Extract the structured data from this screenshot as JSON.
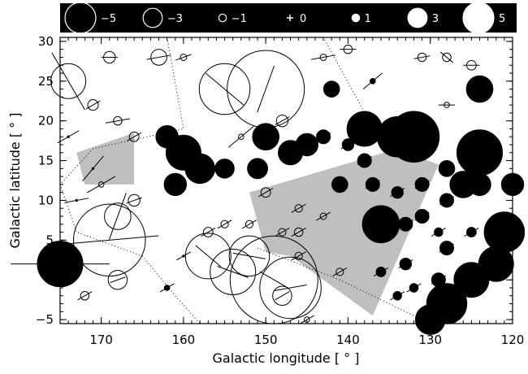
{
  "chart_data": {
    "type": "scatter",
    "title": "",
    "xlabel": "Galactic longitude [ ° ]",
    "ylabel": "Galactic latitude [ ° ]",
    "xlim": [
      175,
      120
    ],
    "ylim": [
      -5.5,
      30.5
    ],
    "x_ticks": [
      170,
      160,
      150,
      140,
      130,
      120
    ],
    "y_ticks": [
      30,
      25,
      20,
      15,
      10,
      5,
      0,
      -5
    ],
    "x_tick_labels": [
      "170",
      "160",
      "150",
      "140",
      "130",
      "120"
    ],
    "y_tick_labels": [
      "30",
      "25",
      "20",
      "15",
      "10",
      "5",
      "0",
      "−5"
    ],
    "legend": {
      "placement": "top",
      "entries": [
        {
          "label": "−5",
          "value": -5
        },
        {
          "label": "−3",
          "value": -3
        },
        {
          "label": "−1",
          "value": -1
        },
        {
          "label": "0",
          "value": 0
        },
        {
          "label": "1",
          "value": 1
        },
        {
          "label": "3",
          "value": 3
        },
        {
          "label": "5",
          "value": 5
        }
      ]
    },
    "shaded_regions": [
      [
        [
          173,
          16
        ],
        [
          166,
          18.5
        ],
        [
          166,
          12
        ],
        [
          172,
          12
        ]
      ],
      [
        [
          152,
          11
        ],
        [
          134,
          16.5
        ],
        [
          129,
          14.5
        ],
        [
          137,
          -4.5
        ],
        [
          147,
          3
        ],
        [
          150,
          3.5
        ]
      ]
    ],
    "dotted_boundaries": [
      [
        [
          162,
          30.5
        ],
        [
          160,
          19
        ],
        [
          171,
          16.5
        ],
        [
          175,
          12
        ],
        [
          173,
          6
        ],
        [
          165,
          3
        ],
        [
          161,
          -2
        ],
        [
          158,
          -5.5
        ]
      ],
      [
        [
          162,
          30.5
        ],
        [
          143,
          30.5
        ],
        [
          138.5,
          22
        ],
        [
          137,
          19
        ]
      ],
      [
        [
          151,
          4
        ],
        [
          141,
          0
        ],
        [
          130,
          -5.5
        ]
      ]
    ],
    "points": [
      {
        "l": 175,
        "b": 2,
        "v": 4.0,
        "pa": 90,
        "len": 6
      },
      {
        "l": 169,
        "b": 5,
        "v": -6.5,
        "pa": 85,
        "len": 6
      },
      {
        "l": 168,
        "b": 0,
        "v": -1.5,
        "pa": 70,
        "len": 1
      },
      {
        "l": 172,
        "b": -2,
        "v": -0.5,
        "pa": 60,
        "len": 1
      },
      {
        "l": 166,
        "b": 10,
        "v": -0.8,
        "pa": 70,
        "len": 1
      },
      {
        "l": 168,
        "b": 8,
        "v": -2.2,
        "pa": 20,
        "len": 3
      },
      {
        "l": 174,
        "b": 25,
        "v": -3.0,
        "pa": 150,
        "len": 4
      },
      {
        "l": 169,
        "b": 28,
        "v": -0.8,
        "pa": 90,
        "len": 1
      },
      {
        "l": 163,
        "b": 28,
        "v": -1.2,
        "pa": 80,
        "len": 1.5
      },
      {
        "l": 160,
        "b": 28,
        "v": -0.3,
        "pa": 70,
        "len": 1
      },
      {
        "l": 171,
        "b": 22,
        "v": -0.7,
        "pa": 60,
        "len": 1
      },
      {
        "l": 168,
        "b": 20,
        "v": -0.5,
        "pa": 80,
        "len": 1.5
      },
      {
        "l": 166,
        "b": 18,
        "v": -0.6,
        "pa": 60,
        "len": 1
      },
      {
        "l": 170,
        "b": 12,
        "v": -0.2,
        "pa": 60,
        "len": 2
      },
      {
        "l": 173,
        "b": 10,
        "v": 0,
        "pa": 80,
        "len": 1.5
      },
      {
        "l": 171,
        "b": 14,
        "v": 0,
        "pa": 40,
        "len": 2
      },
      {
        "l": 174,
        "b": 18,
        "v": 0,
        "pa": 60,
        "len": 1.5
      },
      {
        "l": 155,
        "b": 24,
        "v": -4.5,
        "pa": 130,
        "len": 3
      },
      {
        "l": 150,
        "b": 24,
        "v": -7.0,
        "pa": 20,
        "len": 3
      },
      {
        "l": 148,
        "b": 20,
        "v": -0.8,
        "pa": 60,
        "len": 1
      },
      {
        "l": 153,
        "b": 18,
        "v": -0.2,
        "pa": 50,
        "len": 2
      },
      {
        "l": 140,
        "b": 29,
        "v": -0.5,
        "pa": 90,
        "len": 1
      },
      {
        "l": 143,
        "b": 28,
        "v": -0.3,
        "pa": 80,
        "len": 1.5
      },
      {
        "l": 131,
        "b": 28,
        "v": -0.5,
        "pa": 80,
        "len": 1
      },
      {
        "l": 128,
        "b": 28,
        "v": -0.5,
        "pa": 130,
        "len": 1
      },
      {
        "l": 125,
        "b": 27,
        "v": -0.6,
        "pa": 90,
        "len": 1
      },
      {
        "l": 128,
        "b": 22,
        "v": -0.2,
        "pa": 90,
        "len": 1
      },
      {
        "l": 137,
        "b": 25,
        "v": 0.2,
        "pa": 50,
        "len": 1.5
      },
      {
        "l": 142,
        "b": 24,
        "v": 1.2,
        "pa": 60,
        "len": 1
      },
      {
        "l": 124,
        "b": 24,
        "v": 2.2,
        "pa": 60,
        "len": 1
      },
      {
        "l": 138,
        "b": 19,
        "v": 3.0,
        "pa": 70,
        "len": 2
      },
      {
        "l": 132,
        "b": 18,
        "v": 4.5,
        "pa": 70,
        "len": 2
      },
      {
        "l": 124,
        "b": 16,
        "v": 4.0,
        "pa": 60,
        "len": 2
      },
      {
        "l": 134,
        "b": 18,
        "v": 3.5,
        "pa": 70,
        "len": 1.5
      },
      {
        "l": 162,
        "b": 18,
        "v": 1.8,
        "pa": 60,
        "len": 1
      },
      {
        "l": 160,
        "b": 16,
        "v": 3.0,
        "pa": 50,
        "len": 1
      },
      {
        "l": 158,
        "b": 14,
        "v": 2.5,
        "pa": 50,
        "len": 1
      },
      {
        "l": 161,
        "b": 12,
        "v": 1.8,
        "pa": 60,
        "len": 1
      },
      {
        "l": 155,
        "b": 14,
        "v": 1.5,
        "pa": 60,
        "len": 1
      },
      {
        "l": 151,
        "b": 14,
        "v": 1.6,
        "pa": 60,
        "len": 1
      },
      {
        "l": 150,
        "b": 18,
        "v": 2.2,
        "pa": 60,
        "len": 1
      },
      {
        "l": 147,
        "b": 16,
        "v": 2.0,
        "pa": 60,
        "len": 1
      },
      {
        "l": 145,
        "b": 17,
        "v": 1.8,
        "pa": 60,
        "len": 1
      },
      {
        "l": 143,
        "b": 18,
        "v": 1.0,
        "pa": 60,
        "len": 1
      },
      {
        "l": 140,
        "b": 17,
        "v": 0.8,
        "pa": 60,
        "len": 1
      },
      {
        "l": 138,
        "b": 15,
        "v": 1.0,
        "pa": 60,
        "len": 1
      },
      {
        "l": 141,
        "b": 12,
        "v": 1.2,
        "pa": 60,
        "len": 1
      },
      {
        "l": 137,
        "b": 12,
        "v": 1.0,
        "pa": 60,
        "len": 1
      },
      {
        "l": 134,
        "b": 11,
        "v": 0.8,
        "pa": 60,
        "len": 1
      },
      {
        "l": 131,
        "b": 12,
        "v": 1.0,
        "pa": 60,
        "len": 1
      },
      {
        "l": 128,
        "b": 14,
        "v": 1.2,
        "pa": 60,
        "len": 1
      },
      {
        "l": 126,
        "b": 12,
        "v": 2.2,
        "pa": 60,
        "len": 1
      },
      {
        "l": 124,
        "b": 12,
        "v": 1.8,
        "pa": 60,
        "len": 1
      },
      {
        "l": 120,
        "b": 12,
        "v": 1.8,
        "pa": 60,
        "len": 1
      },
      {
        "l": 128,
        "b": 10,
        "v": 1.0,
        "pa": 60,
        "len": 1
      },
      {
        "l": 131,
        "b": 8,
        "v": 1.0,
        "pa": 60,
        "len": 1
      },
      {
        "l": 136,
        "b": 7,
        "v": 3.2,
        "pa": 60,
        "len": 1
      },
      {
        "l": 133,
        "b": 7,
        "v": 1.0,
        "pa": 60,
        "len": 1
      },
      {
        "l": 129,
        "b": 6,
        "v": 0.5,
        "pa": 60,
        "len": 1
      },
      {
        "l": 125,
        "b": 6,
        "v": 0.6,
        "pa": 60,
        "len": 1
      },
      {
        "l": 121,
        "b": 6,
        "v": 3.5,
        "pa": 60,
        "len": 1
      },
      {
        "l": 128,
        "b": 4,
        "v": 1.0,
        "pa": 60,
        "len": 1
      },
      {
        "l": 122,
        "b": 2,
        "v": 3.0,
        "pa": 60,
        "len": 1
      },
      {
        "l": 125,
        "b": 0,
        "v": 3.0,
        "pa": 60,
        "len": 1
      },
      {
        "l": 129,
        "b": 0,
        "v": 1.0,
        "pa": 60,
        "len": 1
      },
      {
        "l": 128,
        "b": -3,
        "v": 3.5,
        "pa": 60,
        "len": 1
      },
      {
        "l": 130,
        "b": -5,
        "v": 2.5,
        "pa": 60,
        "len": 1
      },
      {
        "l": 132,
        "b": -1,
        "v": 0.5,
        "pa": 60,
        "len": 1
      },
      {
        "l": 134,
        "b": -2,
        "v": 0.5,
        "pa": 60,
        "len": 1
      },
      {
        "l": 133,
        "b": 2,
        "v": 0.8,
        "pa": 60,
        "len": 1
      },
      {
        "l": 136,
        "b": 1,
        "v": 0.6,
        "pa": 60,
        "len": 1
      },
      {
        "l": 141,
        "b": 1,
        "v": -0.4,
        "pa": 60,
        "len": 1
      },
      {
        "l": 148,
        "b": -2,
        "v": -1.5,
        "pa": 60,
        "len": 1
      },
      {
        "l": 146,
        "b": 3,
        "v": -0.4,
        "pa": 60,
        "len": 1
      },
      {
        "l": 148,
        "b": 6,
        "v": -0.4,
        "pa": 60,
        "len": 1
      },
      {
        "l": 152,
        "b": 7,
        "v": -0.4,
        "pa": 60,
        "len": 1
      },
      {
        "l": 155,
        "b": 7,
        "v": -0.4,
        "pa": 60,
        "len": 1
      },
      {
        "l": 157,
        "b": 6,
        "v": -0.6,
        "pa": 60,
        "len": 1
      },
      {
        "l": 150,
        "b": 11,
        "v": -0.6,
        "pa": 60,
        "len": 1
      },
      {
        "l": 146,
        "b": 9,
        "v": -0.4,
        "pa": 60,
        "len": 1
      },
      {
        "l": 143,
        "b": 8,
        "v": -0.3,
        "pa": 60,
        "len": 1
      },
      {
        "l": 146,
        "b": 6,
        "v": -0.5,
        "pa": 60,
        "len": 1
      },
      {
        "l": 160,
        "b": 3,
        "v": 0,
        "pa": 60,
        "len": 1
      },
      {
        "l": 157,
        "b": 3,
        "v": -4.0,
        "pa": 130,
        "len": 2
      },
      {
        "l": 154,
        "b": 1,
        "v": -4.0,
        "pa": 110,
        "len": 2
      },
      {
        "l": 152,
        "b": 3,
        "v": -3.5,
        "pa": 100,
        "len": 2
      },
      {
        "l": 149,
        "b": 0,
        "v": -8.0,
        "pa": 120,
        "len": 2
      },
      {
        "l": 147,
        "b": -1,
        "v": -5.5,
        "pa": 80,
        "len": 2
      },
      {
        "l": 145,
        "b": -5,
        "v": -0.2,
        "pa": 60,
        "len": 1
      },
      {
        "l": 162,
        "b": -1,
        "v": 0.2,
        "pa": 60,
        "len": 1
      }
    ]
  }
}
